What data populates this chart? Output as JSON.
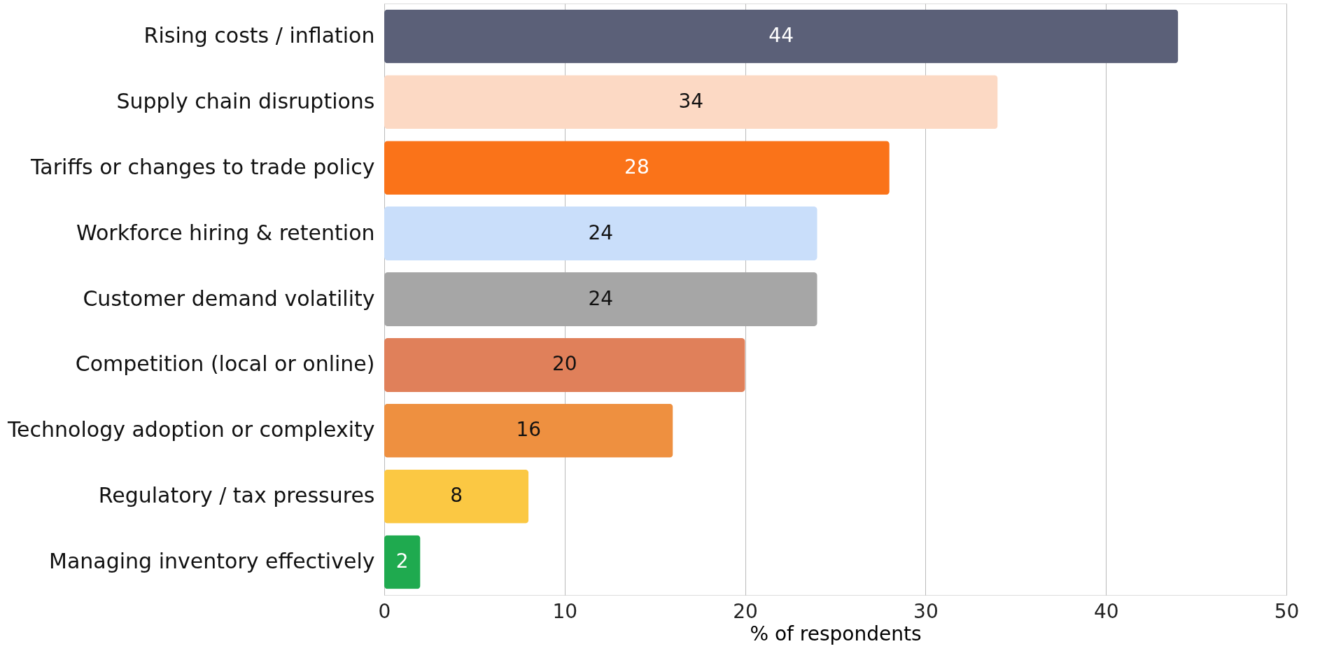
{
  "chart_data": {
    "type": "bar",
    "orientation": "horizontal",
    "xlabel": "% of respondents",
    "categories": [
      "Rising costs / inflation",
      "Supply chain disruptions",
      "Tariffs or changes to trade policy",
      "Workforce hiring & retention",
      "Customer demand volatility",
      "Competition (local or online)",
      "Technology adoption or complexity",
      "Regulatory / tax pressures",
      "Managing inventory effectively"
    ],
    "values": [
      44,
      34,
      28,
      24,
      24,
      20,
      16,
      8,
      2
    ],
    "colors": [
      "#5b6078",
      "#fcd9c4",
      "#fa7319",
      "#c9defa",
      "#a6a6a6",
      "#e0805a",
      "#ee9040",
      "#fbc843",
      "#1faa4f"
    ],
    "xlim": [
      0,
      50
    ],
    "xticks": [
      0,
      10,
      20,
      30,
      40,
      50
    ],
    "grid": "x",
    "data_labels": true
  }
}
